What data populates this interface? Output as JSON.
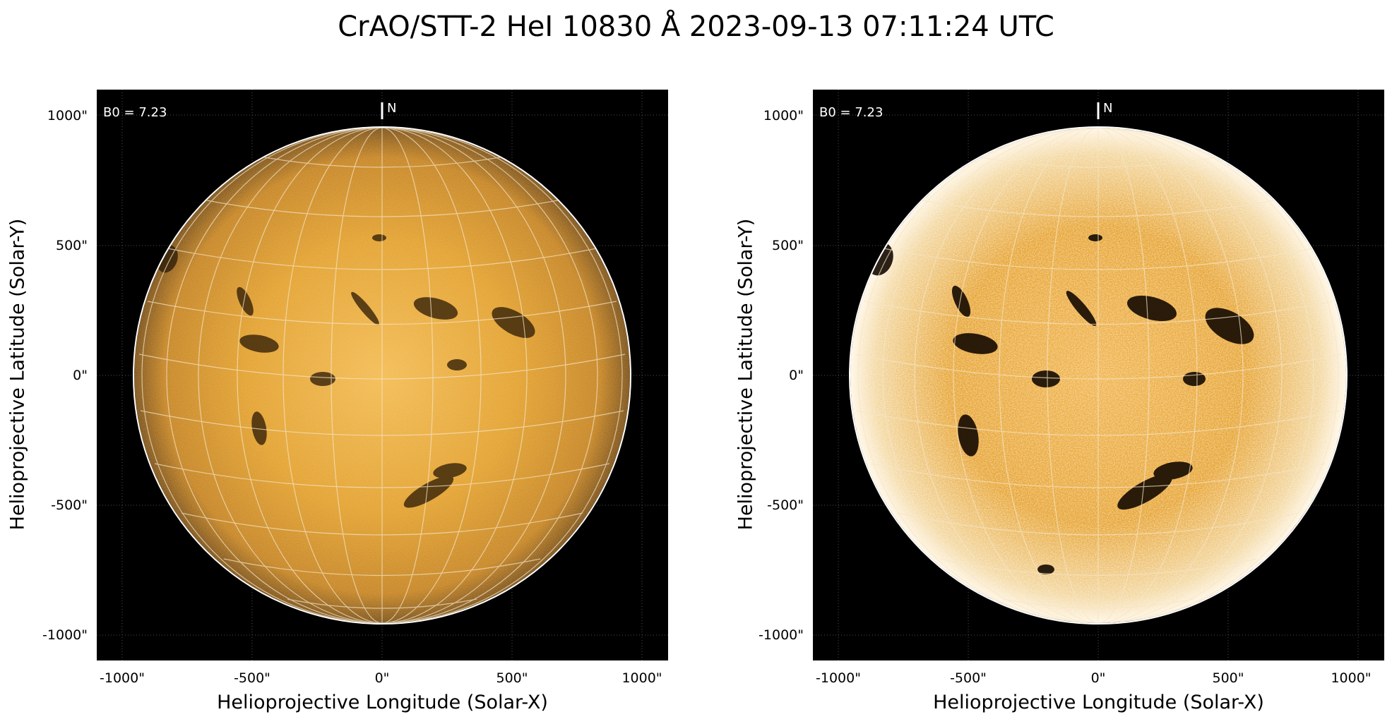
{
  "title": "CrAO/STT-2 HeI 10830 Å 2023-09-13 07:11:24 UTC",
  "panels": [
    {
      "id": "left",
      "variant": "normal",
      "xlabel": "Helioprojective Longitude (Solar-X)",
      "ylabel": "Helioprojective Latitude (Solar-Y)",
      "b0_label": "B0 = 7.23",
      "north_label": "N",
      "xticks": [
        "-1000\"",
        "-500\"",
        "0\"",
        "500\"",
        "1000\""
      ],
      "yticks": [
        "1000\"",
        "500\"",
        "0\"",
        "-500\"",
        "-1000\""
      ]
    },
    {
      "id": "right",
      "variant": "enhanced",
      "xlabel": "Helioprojective Longitude (Solar-X)",
      "ylabel": "Helioprojective Latitude (Solar-Y)",
      "b0_label": "B0 = 7.23",
      "north_label": "N",
      "xticks": [
        "-1000\"",
        "-500\"",
        "0\"",
        "500\"",
        "1000\""
      ],
      "yticks": [
        "1000\"",
        "500\"",
        "0\"",
        "-500\"",
        "-1000\""
      ]
    }
  ],
  "colors": {
    "background": "#000000",
    "disk_main": "#e0971f",
    "disk_edge": "#7a4a0a",
    "disk_center_light": "#f2b74a",
    "enhanced_light": "#fff4de",
    "features": "#1a0e02",
    "grid": "#f5e6c8",
    "limb": "#ffffff"
  }
}
